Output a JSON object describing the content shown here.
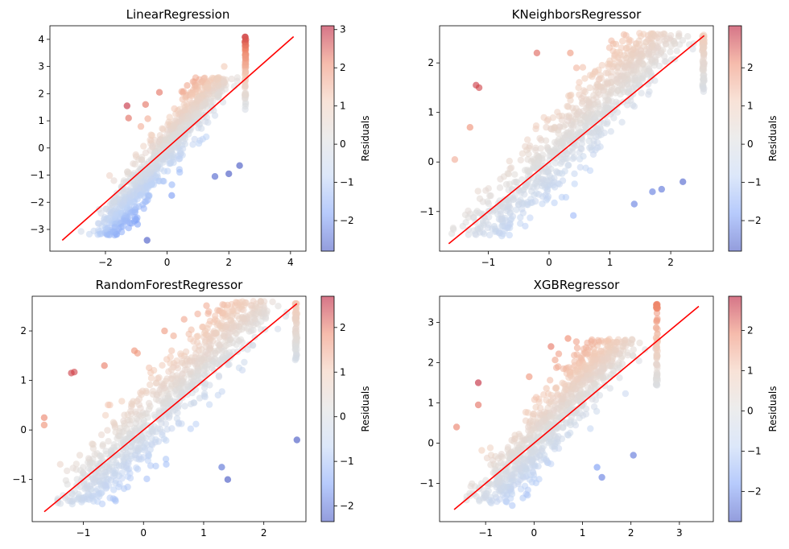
{
  "colorbar_label": "Residuals",
  "colormap": [
    "#3b4cc0",
    "#7b9ff9",
    "#c0d4f5",
    "#dddddd",
    "#f2cbb7",
    "#ee8468",
    "#b40426"
  ],
  "identity_line_color": "#ff0000",
  "chart_data": [
    {
      "type": "scatter",
      "title": "LinearRegression",
      "xlim": [
        -3.8,
        4.5
      ],
      "ylim": [
        -3.8,
        4.5
      ],
      "xticks": [
        -2,
        0,
        2,
        4
      ],
      "yticks": [
        -3,
        -2,
        -1,
        0,
        1,
        2,
        3,
        4
      ],
      "line": [
        -3.4,
        4.1
      ],
      "clip_x": 2.55,
      "slope": 0.62,
      "spread": 0.32,
      "cbar_range": [
        -2.8,
        3.1
      ],
      "cbar_ticks": [
        -2,
        -1,
        0,
        1,
        2,
        3
      ],
      "outliers": [
        [
          -1.3,
          1.55
        ],
        [
          -1.25,
          1.1
        ],
        [
          -0.7,
          1.6
        ],
        [
          -0.25,
          2.05
        ],
        [
          0.65,
          2.3
        ],
        [
          -0.65,
          -3.4
        ],
        [
          0.15,
          -1.75
        ],
        [
          1.85,
          3.0
        ],
        [
          1.55,
          -1.05
        ],
        [
          2.0,
          -0.95
        ],
        [
          2.35,
          -0.65
        ]
      ]
    },
    {
      "type": "scatter",
      "title": "KNeighborsRegressor",
      "xlim": [
        -1.8,
        2.7
      ],
      "ylim": [
        -1.8,
        2.75
      ],
      "xticks": [
        -1,
        0,
        1,
        2
      ],
      "yticks": [
        -1,
        0,
        1,
        2
      ],
      "line": [
        -1.65,
        2.55
      ],
      "clip_x": 2.55,
      "slope": 0.72,
      "spread": 0.3,
      "cbar_range": [
        -2.8,
        3.1
      ],
      "cbar_ticks": [
        -2,
        -1,
        0,
        1,
        2
      ],
      "outliers": [
        [
          -1.2,
          1.55
        ],
        [
          -1.15,
          1.5
        ],
        [
          -0.2,
          2.2
        ],
        [
          0.35,
          2.2
        ],
        [
          0.45,
          1.9
        ],
        [
          -1.3,
          0.7
        ],
        [
          -1.55,
          0.05
        ],
        [
          1.7,
          -0.6
        ],
        [
          1.85,
          -0.55
        ],
        [
          1.4,
          -0.85
        ],
        [
          2.2,
          -0.4
        ],
        [
          -0.9,
          -1.3
        ]
      ]
    },
    {
      "type": "scatter",
      "title": "RandomForestRegressor",
      "xlim": [
        -1.85,
        2.7
      ],
      "ylim": [
        -1.85,
        2.7
      ],
      "xticks": [
        -1,
        0,
        1,
        2
      ],
      "yticks": [
        -1,
        0,
        1,
        2
      ],
      "line": [
        -1.65,
        2.55
      ],
      "clip_x": 2.55,
      "slope": 0.7,
      "spread": 0.3,
      "cbar_range": [
        -2.35,
        2.7
      ],
      "cbar_ticks": [
        -2,
        -1,
        0,
        1,
        2
      ],
      "outliers": [
        [
          -1.2,
          1.15
        ],
        [
          -1.15,
          1.17
        ],
        [
          -0.15,
          1.6
        ],
        [
          -0.1,
          1.55
        ],
        [
          0.35,
          2.0
        ],
        [
          -1.65,
          0.25
        ],
        [
          -1.65,
          0.1
        ],
        [
          -0.65,
          1.3
        ],
        [
          1.4,
          -1.0
        ],
        [
          1.3,
          -0.75
        ],
        [
          2.55,
          -0.2
        ],
        [
          0.5,
          1.9
        ]
      ]
    },
    {
      "type": "scatter",
      "title": "XGBRegressor",
      "xlim": [
        -1.95,
        3.7
      ],
      "ylim": [
        -1.95,
        3.65
      ],
      "xticks": [
        -1,
        0,
        1,
        2,
        3
      ],
      "yticks": [
        -1,
        0,
        1,
        2,
        3
      ],
      "line": [
        -1.65,
        3.4
      ],
      "clip_x": 2.55,
      "slope": 0.65,
      "spread": 0.3,
      "cbar_range": [
        -2.75,
        2.85
      ],
      "cbar_ticks": [
        -2,
        -1,
        0,
        1,
        2
      ],
      "outliers": [
        [
          -1.15,
          1.5
        ],
        [
          -1.15,
          0.95
        ],
        [
          0.35,
          2.4
        ],
        [
          0.7,
          2.6
        ],
        [
          -0.1,
          1.65
        ],
        [
          -0.45,
          -1.55
        ],
        [
          1.4,
          -0.85
        ],
        [
          1.3,
          -0.6
        ],
        [
          2.05,
          -0.3
        ],
        [
          -1.6,
          0.4
        ]
      ]
    }
  ]
}
